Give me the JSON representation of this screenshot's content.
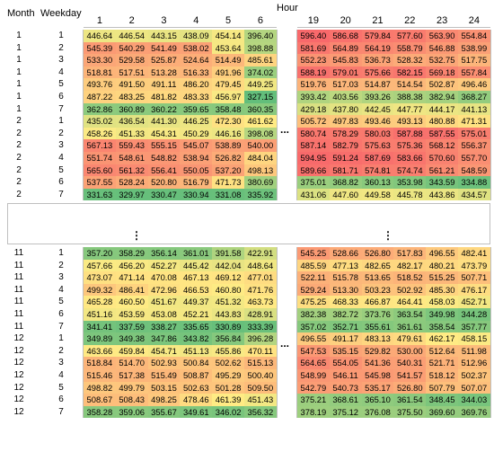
{
  "chart_data": {
    "type": "heatmap",
    "title": "",
    "header_hour": "Hour",
    "header_month": "Month",
    "header_weekday": "Weekday",
    "hours_left": [
      "1",
      "2",
      "3",
      "4",
      "5",
      "6"
    ],
    "hours_right": [
      "19",
      "20",
      "21",
      "22",
      "23",
      "24"
    ],
    "ellipsis": "...",
    "vertical_ellipsis": "⋮",
    "color_scale": {
      "low": "#63be7b",
      "mid": "#ffeb84",
      "high": "#f8696b"
    },
    "groups": [
      {
        "rows": [
          {
            "month": "1",
            "weekday": "1",
            "left": [
              446.64,
              446.54,
              443.15,
              438.09,
              454.14,
              396.4
            ],
            "right": [
              596.4,
              586.68,
              579.84,
              577.6,
              563.9,
              554.84
            ]
          },
          {
            "month": "1",
            "weekday": "2",
            "left": [
              545.39,
              540.29,
              541.49,
              538.02,
              453.64,
              398.88
            ],
            "right": [
              581.69,
              564.89,
              564.19,
              558.79,
              546.88,
              538.99
            ]
          },
          {
            "month": "1",
            "weekday": "3",
            "left": [
              533.3,
              529.58,
              525.87,
              524.64,
              514.49,
              485.61
            ],
            "right": [
              552.23,
              545.83,
              536.73,
              528.32,
              532.75,
              517.75
            ]
          },
          {
            "month": "1",
            "weekday": "4",
            "left": [
              518.81,
              517.51,
              513.28,
              516.33,
              491.96,
              374.02
            ],
            "right": [
              588.19,
              579.01,
              575.66,
              582.15,
              569.18,
              557.84
            ]
          },
          {
            "month": "1",
            "weekday": "5",
            "left": [
              493.76,
              491.5,
              491.11,
              486.2,
              479.45,
              449.25
            ],
            "right": [
              519.76,
              517.03,
              514.87,
              514.54,
              502.87,
              496.46
            ]
          },
          {
            "month": "1",
            "weekday": "6",
            "left": [
              487.22,
              483.25,
              481.82,
              483.33,
              456.97,
              327.15
            ],
            "right": [
              393.42,
              403.56,
              393.26,
              388.38,
              382.94,
              368.27
            ]
          },
          {
            "month": "1",
            "weekday": "7",
            "left": [
              362.86,
              360.89,
              360.22,
              359.65,
              358.48,
              360.35
            ],
            "right": [
              429.18,
              437.8,
              442.45,
              447.77,
              444.17,
              441.13
            ]
          },
          {
            "month": "2",
            "weekday": "1",
            "left": [
              435.02,
              436.54,
              441.3,
              446.25,
              472.3,
              461.62
            ],
            "right": [
              505.72,
              497.83,
              493.46,
              493.13,
              480.88,
              471.31
            ]
          },
          {
            "month": "2",
            "weekday": "2",
            "left": [
              458.26,
              451.33,
              454.31,
              450.29,
              446.16,
              398.08
            ],
            "right": [
              580.74,
              578.29,
              580.03,
              587.88,
              587.55,
              575.01
            ]
          },
          {
            "month": "2",
            "weekday": "3",
            "left": [
              567.13,
              559.43,
              555.15,
              545.07,
              538.89,
              540.0
            ],
            "right": [
              587.14,
              582.79,
              575.63,
              575.36,
              568.12,
              556.37
            ]
          },
          {
            "month": "2",
            "weekday": "4",
            "left": [
              551.74,
              548.61,
              548.82,
              538.94,
              526.82,
              484.04
            ],
            "right": [
              594.95,
              591.24,
              587.69,
              583.66,
              570.6,
              557.7
            ]
          },
          {
            "month": "2",
            "weekday": "5",
            "left": [
              565.6,
              561.32,
              556.41,
              550.05,
              537.2,
              498.13
            ],
            "right": [
              589.66,
              581.71,
              574.81,
              574.74,
              561.21,
              548.59
            ]
          },
          {
            "month": "2",
            "weekday": "6",
            "left": [
              537.55,
              528.24,
              520.8,
              516.79,
              471.73,
              380.69
            ],
            "right": [
              375.01,
              368.82,
              360.13,
              353.98,
              343.59,
              334.88
            ]
          },
          {
            "month": "2",
            "weekday": "7",
            "left": [
              331.63,
              329.97,
              330.47,
              330.94,
              331.08,
              335.92
            ],
            "right": [
              431.06,
              447.6,
              449.58,
              445.78,
              443.86,
              434.57
            ]
          }
        ]
      },
      {
        "rows": [
          {
            "month": "11",
            "weekday": "1",
            "left": [
              357.2,
              358.29,
              356.14,
              361.01,
              391.58,
              422.91
            ],
            "right": [
              545.25,
              528.66,
              526.8,
              517.83,
              496.55,
              482.41
            ]
          },
          {
            "month": "11",
            "weekday": "2",
            "left": [
              457.66,
              456.2,
              452.27,
              445.42,
              442.04,
              448.64
            ],
            "right": [
              485.59,
              477.13,
              482.65,
              482.17,
              480.21,
              473.79
            ]
          },
          {
            "month": "11",
            "weekday": "3",
            "left": [
              473.07,
              471.14,
              470.08,
              467.13,
              469.12,
              477.01
            ],
            "right": [
              522.11,
              515.78,
              513.65,
              518.52,
              515.25,
              507.71
            ]
          },
          {
            "month": "11",
            "weekday": "4",
            "left": [
              499.32,
              486.41,
              472.96,
              466.53,
              460.8,
              471.76
            ],
            "right": [
              529.24,
              513.3,
              503.23,
              502.92,
              485.3,
              476.17
            ]
          },
          {
            "month": "11",
            "weekday": "5",
            "left": [
              465.28,
              460.5,
              451.67,
              449.37,
              451.32,
              463.73
            ],
            "right": [
              475.25,
              468.33,
              466.87,
              464.41,
              458.03,
              452.71
            ]
          },
          {
            "month": "11",
            "weekday": "6",
            "left": [
              451.16,
              453.59,
              453.08,
              452.21,
              443.83,
              428.91
            ],
            "right": [
              382.38,
              382.72,
              373.76,
              363.54,
              349.98,
              344.28
            ]
          },
          {
            "month": "11",
            "weekday": "7",
            "left": [
              341.41,
              337.59,
              338.27,
              335.65,
              330.89,
              333.39
            ],
            "right": [
              357.02,
              352.71,
              355.61,
              361.61,
              358.54,
              357.77
            ]
          },
          {
            "month": "12",
            "weekday": "1",
            "left": [
              349.89,
              349.38,
              347.86,
              343.82,
              356.84,
              396.28
            ],
            "right": [
              496.55,
              491.17,
              483.13,
              479.61,
              462.17,
              458.15
            ]
          },
          {
            "month": "12",
            "weekday": "2",
            "left": [
              463.66,
              459.84,
              454.71,
              451.13,
              455.86,
              470.11
            ],
            "right": [
              547.53,
              535.15,
              529.82,
              530.0,
              512.64,
              511.98
            ]
          },
          {
            "month": "12",
            "weekday": "3",
            "left": [
              518.84,
              514.7,
              502.93,
              500.84,
              502.62,
              515.13
            ],
            "right": [
              564.65,
              554.05,
              541.36,
              540.31,
              521.71,
              512.96
            ]
          },
          {
            "month": "12",
            "weekday": "4",
            "left": [
              515.46,
              517.38,
              515.49,
              508.87,
              495.29,
              500.4
            ],
            "right": [
              548.99,
              546.11,
              545.98,
              541.57,
              518.12,
              502.37
            ]
          },
          {
            "month": "12",
            "weekday": "5",
            "left": [
              498.82,
              499.79,
              503.15,
              502.63,
              501.28,
              509.5
            ],
            "right": [
              542.79,
              540.73,
              535.17,
              526.8,
              507.79,
              507.07
            ]
          },
          {
            "month": "12",
            "weekday": "6",
            "left": [
              508.67,
              508.43,
              498.25,
              478.46,
              461.39,
              451.43
            ],
            "right": [
              375.21,
              368.61,
              365.1,
              361.54,
              348.45,
              344.03
            ]
          },
          {
            "month": "12",
            "weekday": "7",
            "left": [
              358.28,
              359.06,
              355.67,
              349.61,
              346.02,
              356.32
            ],
            "right": [
              378.19,
              375.12,
              376.08,
              375.5,
              369.6,
              369.76
            ]
          }
        ]
      }
    ]
  }
}
